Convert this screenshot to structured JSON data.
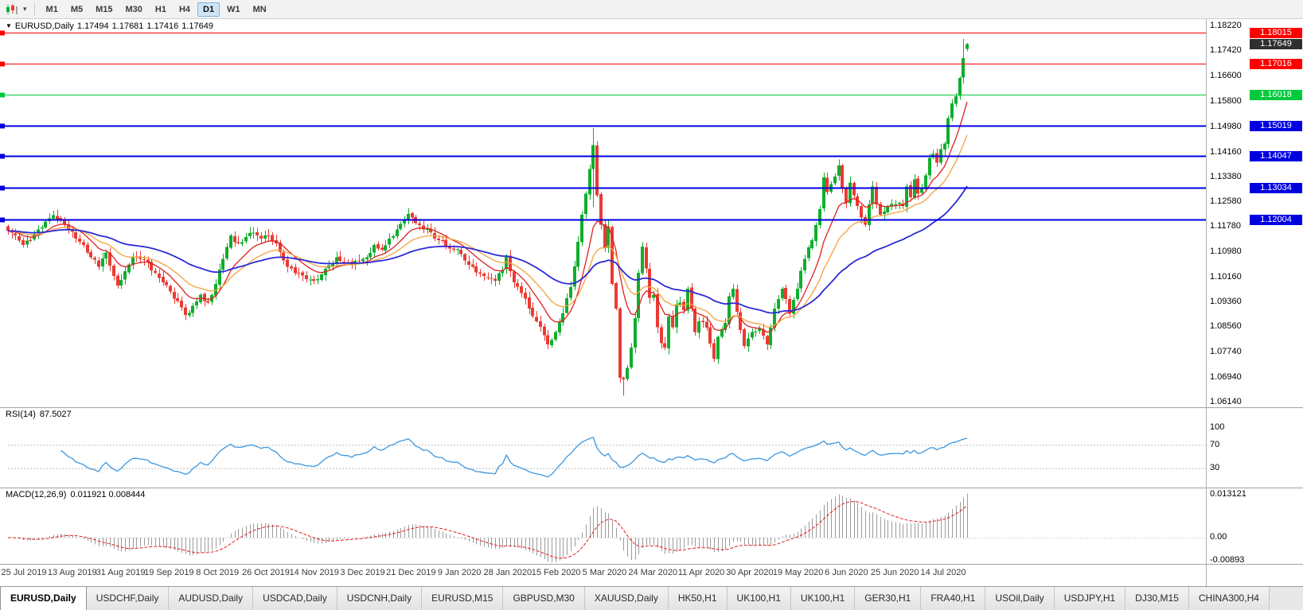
{
  "toolbar": {
    "timeframes": [
      "M1",
      "M5",
      "M15",
      "M30",
      "H1",
      "H4",
      "D1",
      "W1",
      "MN"
    ],
    "active_timeframe": "D1"
  },
  "chart": {
    "title": "EURUSD,Daily",
    "ohlc": {
      "open": "1.17494",
      "high": "1.17681",
      "low": "1.17416",
      "close": "1.17649"
    }
  },
  "hlines": [
    {
      "price": "1.18015",
      "value": 1.18015,
      "color": "#FF0000",
      "width": 1
    },
    {
      "price": "1.17016",
      "value": 1.17016,
      "color": "#FF0000",
      "width": 1
    },
    {
      "price": "1.16018",
      "value": 1.16018,
      "color": "#00C93C",
      "width": 1
    },
    {
      "price": "1.15019",
      "value": 1.15019,
      "color": "#0000E0",
      "width": 2
    },
    {
      "price": "1.14047",
      "value": 1.14047,
      "color": "#0000E0",
      "width": 2
    },
    {
      "price": "1.13034",
      "value": 1.13034,
      "color": "#0000E0",
      "width": 2
    },
    {
      "price": "1.12004",
      "value": 1.12004,
      "color": "#0000E0",
      "width": 2
    }
  ],
  "current_price": {
    "label": "1.17649",
    "value": 1.17649,
    "badge_color": "#2f2f2f"
  },
  "price_scale": [
    "1.18220",
    "1.17420",
    "1.16600",
    "1.15800",
    "1.14980",
    "1.14160",
    "1.13380",
    "1.12580",
    "1.11780",
    "1.10980",
    "1.10160",
    "1.09360",
    "1.08560",
    "1.07740",
    "1.06940",
    "1.06140"
  ],
  "rsi": {
    "label": "RSI(14)",
    "value": "87.5027",
    "levels": [
      "100",
      "70",
      "30"
    ]
  },
  "macd": {
    "label": "MACD(12,26,9)",
    "values": "0.011921 0.008444",
    "scale": [
      "0.013121",
      "0.00",
      "-0.00893"
    ]
  },
  "dates": [
    "25 Jul 2019",
    "13 Aug 2019",
    "31 Aug 2019",
    "19 Sep 2019",
    "8 Oct 2019",
    "26 Oct 2019",
    "14 Nov 2019",
    "3 Dec 2019",
    "21 Dec 2019",
    "9 Jan 2020",
    "28 Jan 2020",
    "15 Feb 2020",
    "5 Mar 2020",
    "24 Mar 2020",
    "11 Apr 2020",
    "30 Apr 2020",
    "19 May 2020",
    "6 Jun 2020",
    "25 Jun 2020",
    "14 Jul 2020"
  ],
  "tabs": {
    "active": "EURUSD,Daily",
    "items": [
      "EURUSD,Daily",
      "USDCHF,Daily",
      "AUDUSD,Daily",
      "USDCAD,Daily",
      "USDCNH,Daily",
      "EURUSD,M15",
      "GBPUSD,M30",
      "XAUUSD,Daily",
      "HK50,H1",
      "UK100,H1",
      "UK100,H1",
      "GER30,H1",
      "FRA40,H1",
      "USOil,Daily",
      "USDJPY,H1",
      "DJ30,M15",
      "CHINA300,H4"
    ]
  },
  "chart_data": {
    "type": "candlestick",
    "symbol": "EURUSD",
    "timeframe": "Daily",
    "ylim": [
      1.0604,
      1.184
    ],
    "num_candles": 255,
    "up_color": "#0FAE2D",
    "down_color": "#EA3B34",
    "close_anchors": [
      [
        0,
        1.1165
      ],
      [
        2,
        1.115
      ],
      [
        4,
        1.112
      ],
      [
        6,
        1.1135
      ],
      [
        8,
        1.117
      ],
      [
        10,
        1.1195
      ],
      [
        12,
        1.1215
      ],
      [
        14,
        1.12
      ],
      [
        16,
        1.117
      ],
      [
        18,
        1.114
      ],
      [
        20,
        1.112
      ],
      [
        22,
        1.108
      ],
      [
        24,
        1.105
      ],
      [
        26,
        1.1095
      ],
      [
        28,
        1.102
      ],
      [
        29,
        1.099
      ],
      [
        31,
        1.1035
      ],
      [
        33,
        1.108
      ],
      [
        35,
        1.1075
      ],
      [
        37,
        1.1065
      ],
      [
        39,
        1.103
      ],
      [
        41,
        1.1
      ],
      [
        43,
        1.097
      ],
      [
        45,
        1.094
      ],
      [
        47,
        1.0895
      ],
      [
        49,
        1.0925
      ],
      [
        51,
        1.096
      ],
      [
        53,
        1.0935
      ],
      [
        55,
        1.0995
      ],
      [
        57,
        1.1075
      ],
      [
        59,
        1.115
      ],
      [
        61,
        1.1125
      ],
      [
        63,
        1.1145
      ],
      [
        65,
        1.116
      ],
      [
        67,
        1.114
      ],
      [
        69,
        1.115
      ],
      [
        71,
        1.1125
      ],
      [
        73,
        1.107
      ],
      [
        75,
        1.1045
      ],
      [
        77,
        1.103
      ],
      [
        79,
        1.101
      ],
      [
        81,
        1.1005
      ],
      [
        83,
        1.1025
      ],
      [
        85,
        1.1055
      ],
      [
        87,
        1.108
      ],
      [
        89,
        1.1065
      ],
      [
        91,
        1.1055
      ],
      [
        93,
        1.107
      ],
      [
        95,
        1.108
      ],
      [
        97,
        1.112
      ],
      [
        99,
        1.1105
      ],
      [
        101,
        1.114
      ],
      [
        103,
        1.117
      ],
      [
        105,
        1.12
      ],
      [
        106,
        1.122
      ],
      [
        108,
        1.119
      ],
      [
        110,
        1.117
      ],
      [
        112,
        1.116
      ],
      [
        114,
        1.1135
      ],
      [
        116,
        1.1115
      ],
      [
        118,
        1.1105
      ],
      [
        120,
        1.109
      ],
      [
        123,
        1.105
      ],
      [
        126,
        1.102
      ],
      [
        129,
        1.1005
      ],
      [
        131,
        1.104
      ],
      [
        132,
        1.1085
      ],
      [
        134,
        1.1
      ],
      [
        136,
        1.0965
      ],
      [
        138,
        1.0915
      ],
      [
        140,
        1.0875
      ],
      [
        142,
        1.083
      ],
      [
        143,
        1.08
      ],
      [
        145,
        1.084
      ],
      [
        147,
        1.09
      ],
      [
        149,
        1.0985
      ],
      [
        151,
        1.113
      ],
      [
        153,
        1.1285
      ],
      [
        155,
        1.144
      ],
      [
        156,
        1.128
      ],
      [
        157,
        1.1185
      ],
      [
        158,
        1.111
      ],
      [
        159,
        1.118
      ],
      [
        160,
        1.0995
      ],
      [
        161,
        1.0915
      ],
      [
        162,
        1.0693
      ],
      [
        163,
        1.0688
      ],
      [
        164,
        1.0725
      ],
      [
        165,
        1.079
      ],
      [
        166,
        1.0885
      ],
      [
        167,
        1.103
      ],
      [
        168,
        1.1115
      ],
      [
        169,
        1.1045
      ],
      [
        170,
        1.095
      ],
      [
        171,
        1.096
      ],
      [
        172,
        1.0855
      ],
      [
        173,
        1.0805
      ],
      [
        174,
        1.079
      ],
      [
        175,
        1.089
      ],
      [
        176,
        1.0855
      ],
      [
        177,
        1.093
      ],
      [
        178,
        1.0935
      ],
      [
        179,
        1.091
      ],
      [
        180,
        1.098
      ],
      [
        181,
        1.0915
      ],
      [
        182,
        1.084
      ],
      [
        183,
        1.0875
      ],
      [
        185,
        1.0855
      ],
      [
        187,
        1.0755
      ],
      [
        188,
        1.0825
      ],
      [
        190,
        1.087
      ],
      [
        191,
        1.0955
      ],
      [
        192,
        1.098
      ],
      [
        193,
        1.0905
      ],
      [
        195,
        1.0795
      ],
      [
        197,
        1.084
      ],
      [
        199,
        1.085
      ],
      [
        201,
        1.08
      ],
      [
        203,
        1.0915
      ],
      [
        205,
        1.098
      ],
      [
        207,
        1.09
      ],
      [
        209,
        1.098
      ],
      [
        211,
        1.1075
      ],
      [
        213,
        1.1135
      ],
      [
        215,
        1.1235
      ],
      [
        216,
        1.1337
      ],
      [
        217,
        1.129
      ],
      [
        219,
        1.134
      ],
      [
        220,
        1.1375
      ],
      [
        221,
        1.13
      ],
      [
        222,
        1.1255
      ],
      [
        223,
        1.132
      ],
      [
        225,
        1.1245
      ],
      [
        227,
        1.1185
      ],
      [
        229,
        1.1308
      ],
      [
        230,
        1.125
      ],
      [
        231,
        1.1217
      ],
      [
        233,
        1.1243
      ],
      [
        235,
        1.125
      ],
      [
        237,
        1.1245
      ],
      [
        238,
        1.1308
      ],
      [
        239,
        1.1273
      ],
      [
        240,
        1.133
      ],
      [
        241,
        1.1284
      ],
      [
        242,
        1.13
      ],
      [
        243,
        1.1343
      ],
      [
        244,
        1.14
      ],
      [
        245,
        1.1412
      ],
      [
        246,
        1.1384
      ],
      [
        247,
        1.1427
      ],
      [
        248,
        1.1446
      ],
      [
        249,
        1.1527
      ],
      [
        250,
        1.1574
      ],
      [
        251,
        1.1598
      ],
      [
        252,
        1.1656
      ],
      [
        253,
        1.172
      ],
      [
        254,
        1.17649
      ]
    ],
    "wick_overrides": {
      "12": {
        "high": 1.123
      },
      "47": {
        "low": 1.0879
      },
      "155": {
        "high": 1.1495,
        "low": 1.1241
      },
      "163": {
        "low": 1.0636
      },
      "220": {
        "high": 1.1395
      },
      "253": {
        "high": 1.1781
      }
    },
    "last_candle": {
      "open": 1.17494,
      "high": 1.17681,
      "low": 1.17416,
      "close": 1.17649
    },
    "moving_averages": [
      {
        "name": "fast",
        "period": 10,
        "color": "#E01F1F",
        "width": 1.3
      },
      {
        "name": "medium",
        "period": 20,
        "color": "#F2A33C",
        "width": 1.3
      },
      {
        "name": "slow",
        "period": 50,
        "color": "#2B2BD5",
        "width": 1.8
      }
    ],
    "indicators": {
      "rsi": {
        "period": 14,
        "color": "#3C97E0"
      },
      "macd": {
        "fast": 12,
        "slow": 26,
        "signal": 9,
        "histogram_color": "#9B9B9B",
        "signal_color": "#E01F1F"
      }
    }
  }
}
